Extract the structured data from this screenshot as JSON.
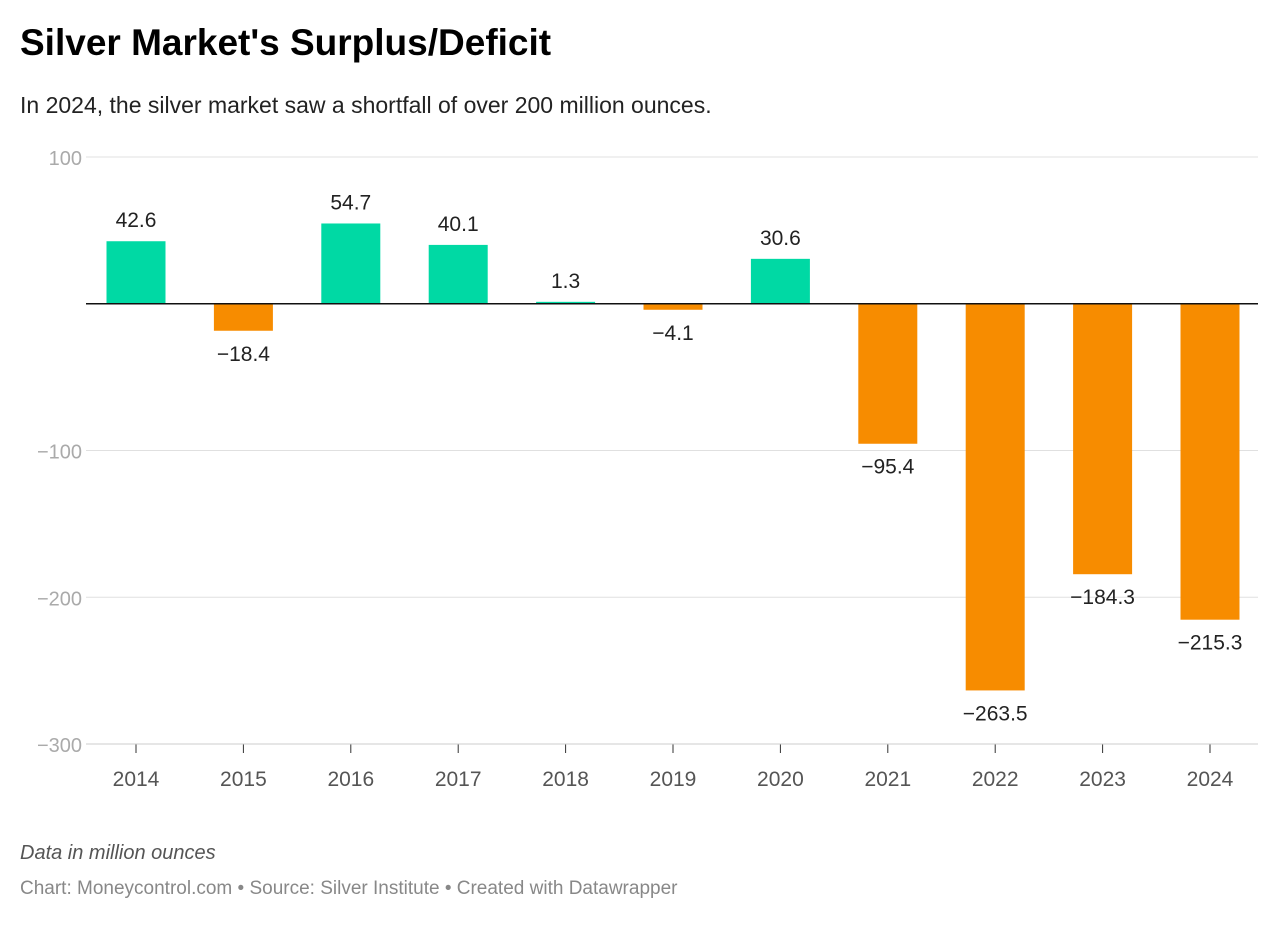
{
  "title": "Silver Market's Surplus/Deficit",
  "subtitle": "In 2024, the silver market saw a shortfall of over 200 million ounces.",
  "notes": "Data in million ounces",
  "source": "Chart: Moneycontrol.com • Source: Silver Institute • Created with Datawrapper",
  "chart_data": {
    "type": "bar",
    "categories": [
      "2014",
      "2015",
      "2016",
      "2017",
      "2018",
      "2019",
      "2020",
      "2021",
      "2022",
      "2023",
      "2024"
    ],
    "values": [
      42.6,
      -18.4,
      54.7,
      40.1,
      1.3,
      -4.1,
      30.6,
      -95.4,
      -263.5,
      -184.3,
      -215.3
    ],
    "labels": [
      "42.6",
      "−18.4",
      "54.7",
      "40.1",
      "1.3",
      "−4.1",
      "30.6",
      "−95.4",
      "−263.5",
      "−184.3",
      "−215.3"
    ],
    "ylim": [
      -300,
      100
    ],
    "yticks": [
      100,
      0,
      -100,
      -200,
      -300
    ],
    "ytick_labels": [
      "100",
      "",
      "−100",
      "−200",
      "−300"
    ],
    "grid": true,
    "colors": {
      "positive": "#00d9a4",
      "negative": "#f78c00"
    }
  }
}
